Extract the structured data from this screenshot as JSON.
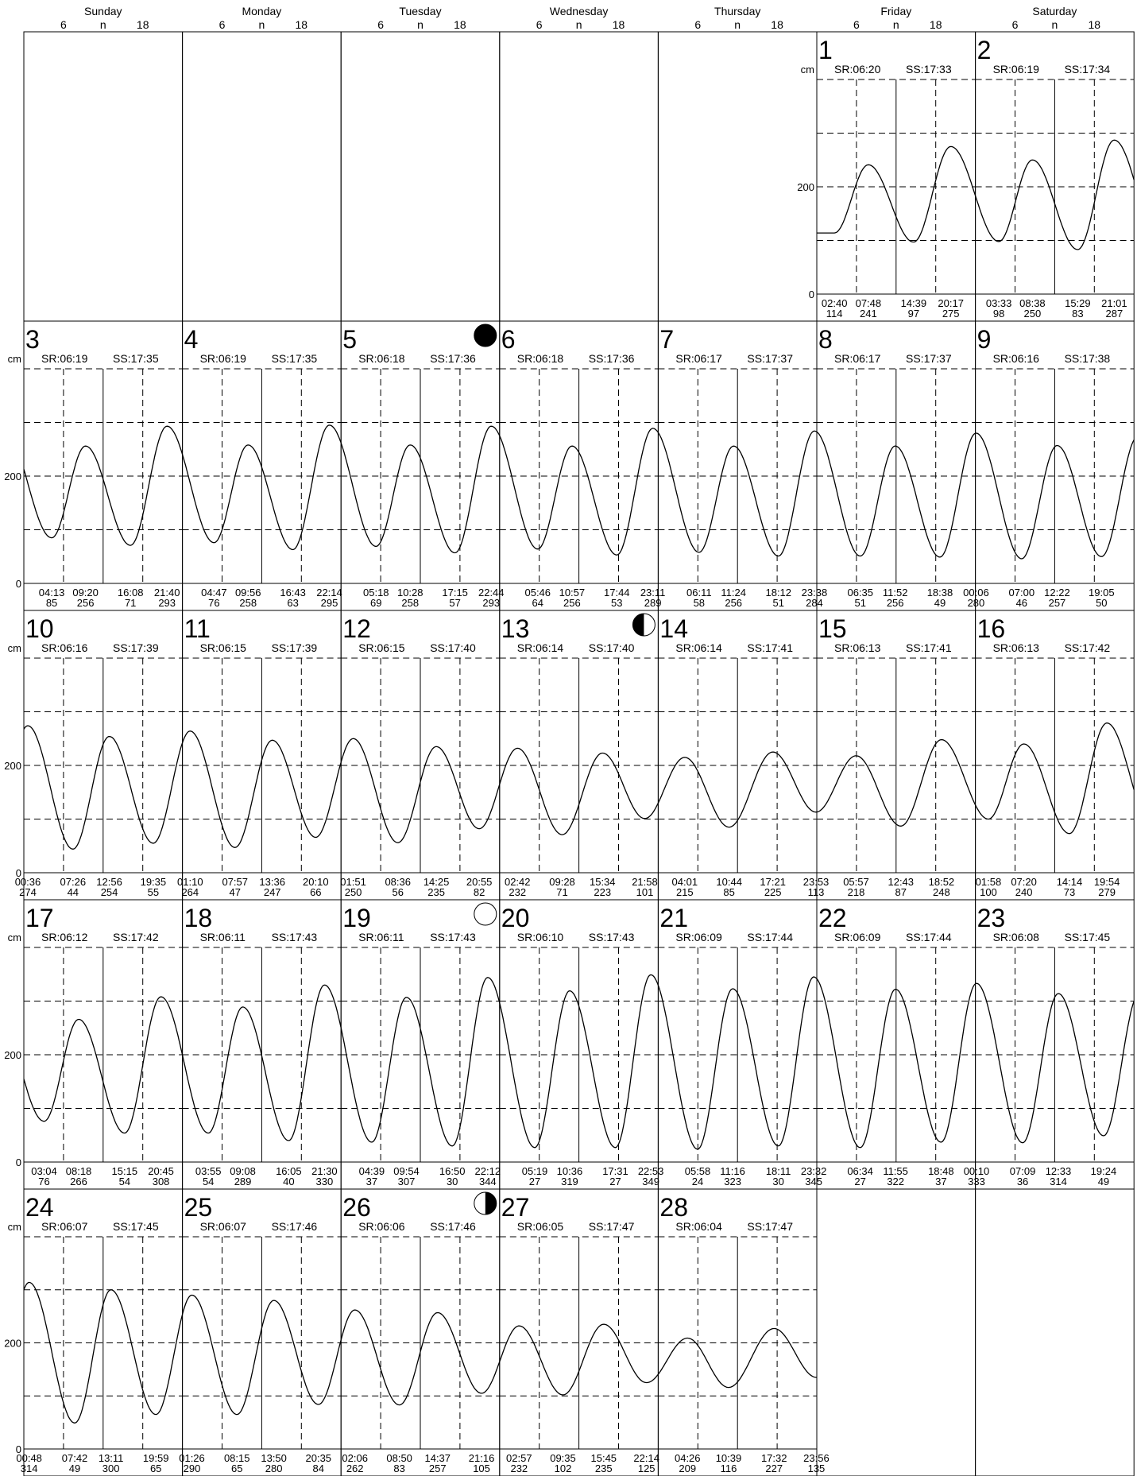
{
  "chart_data": {
    "type": "line",
    "unit": "cm",
    "y_ticks": [
      "200",
      "0"
    ],
    "grid": true,
    "weekdays": [
      "Sunday",
      "Monday",
      "Tuesday",
      "Wednesday",
      "Thursday",
      "Friday",
      "Saturday"
    ],
    "hour_ticks": [
      "6",
      "n",
      "18"
    ],
    "first_weekday_index": 5,
    "days": [
      {
        "day": "1",
        "sr": "SR:06:20",
        "ss": "SS:17:33",
        "moon": "",
        "tides": [
          [
            "02:40",
            "114"
          ],
          [
            "07:48",
            "241"
          ],
          [
            "14:39",
            "97"
          ],
          [
            "20:17",
            "275"
          ]
        ]
      },
      {
        "day": "2",
        "sr": "SR:06:19",
        "ss": "SS:17:34",
        "moon": "",
        "tides": [
          [
            "03:33",
            "98"
          ],
          [
            "08:38",
            "250"
          ],
          [
            "15:29",
            "83"
          ],
          [
            "21:01",
            "287"
          ]
        ]
      },
      {
        "day": "3",
        "sr": "SR:06:19",
        "ss": "SS:17:35",
        "moon": "",
        "tides": [
          [
            "04:13",
            "85"
          ],
          [
            "09:20",
            "256"
          ],
          [
            "16:08",
            "71"
          ],
          [
            "21:40",
            "293"
          ]
        ]
      },
      {
        "day": "4",
        "sr": "SR:06:19",
        "ss": "SS:17:35",
        "moon": "",
        "tides": [
          [
            "04:47",
            "76"
          ],
          [
            "09:56",
            "258"
          ],
          [
            "16:43",
            "63"
          ],
          [
            "22:14",
            "295"
          ]
        ]
      },
      {
        "day": "5",
        "sr": "SR:06:18",
        "ss": "SS:17:36",
        "moon": "new",
        "tides": [
          [
            "05:18",
            "69"
          ],
          [
            "10:28",
            "258"
          ],
          [
            "17:15",
            "57"
          ],
          [
            "22:44",
            "293"
          ]
        ]
      },
      {
        "day": "6",
        "sr": "SR:06:18",
        "ss": "SS:17:36",
        "moon": "",
        "tides": [
          [
            "05:46",
            "64"
          ],
          [
            "10:57",
            "256"
          ],
          [
            "17:44",
            "53"
          ],
          [
            "23:11",
            "289"
          ]
        ]
      },
      {
        "day": "7",
        "sr": "SR:06:17",
        "ss": "SS:17:37",
        "moon": "",
        "tides": [
          [
            "06:11",
            "58"
          ],
          [
            "11:24",
            "256"
          ],
          [
            "18:12",
            "51"
          ],
          [
            "23:38",
            "284"
          ]
        ]
      },
      {
        "day": "8",
        "sr": "SR:06:17",
        "ss": "SS:17:37",
        "moon": "",
        "tides": [
          [
            "06:35",
            "51"
          ],
          [
            "11:52",
            "256"
          ],
          [
            "18:38",
            "49"
          ]
        ]
      },
      {
        "day": "9",
        "sr": "SR:06:16",
        "ss": "SS:17:38",
        "moon": "",
        "tides": [
          [
            "00:06",
            "280"
          ],
          [
            "07:00",
            "46"
          ],
          [
            "12:22",
            "257"
          ],
          [
            "19:05",
            "50"
          ]
        ]
      },
      {
        "day": "10",
        "sr": "SR:06:16",
        "ss": "SS:17:39",
        "moon": "",
        "tides": [
          [
            "00:36",
            "274"
          ],
          [
            "07:26",
            "44"
          ],
          [
            "12:56",
            "254"
          ],
          [
            "19:35",
            "55"
          ]
        ]
      },
      {
        "day": "11",
        "sr": "SR:06:15",
        "ss": "SS:17:39",
        "moon": "",
        "tides": [
          [
            "01:10",
            "264"
          ],
          [
            "07:57",
            "47"
          ],
          [
            "13:36",
            "247"
          ],
          [
            "20:10",
            "66"
          ]
        ]
      },
      {
        "day": "12",
        "sr": "SR:06:15",
        "ss": "SS:17:40",
        "moon": "",
        "tides": [
          [
            "01:51",
            "250"
          ],
          [
            "08:36",
            "56"
          ],
          [
            "14:25",
            "235"
          ],
          [
            "20:55",
            "82"
          ]
        ]
      },
      {
        "day": "13",
        "sr": "SR:06:14",
        "ss": "SS:17:40",
        "moon": "first",
        "tides": [
          [
            "02:42",
            "232"
          ],
          [
            "09:28",
            "71"
          ],
          [
            "15:34",
            "223"
          ],
          [
            "21:58",
            "101"
          ]
        ]
      },
      {
        "day": "14",
        "sr": "SR:06:14",
        "ss": "SS:17:41",
        "moon": "",
        "tides": [
          [
            "04:01",
            "215"
          ],
          [
            "10:44",
            "85"
          ],
          [
            "17:21",
            "225"
          ],
          [
            "23:53",
            "113"
          ]
        ]
      },
      {
        "day": "15",
        "sr": "SR:06:13",
        "ss": "SS:17:41",
        "moon": "",
        "tides": [
          [
            "05:57",
            "218"
          ],
          [
            "12:43",
            "87"
          ],
          [
            "18:52",
            "248"
          ]
        ]
      },
      {
        "day": "16",
        "sr": "SR:06:13",
        "ss": "SS:17:42",
        "moon": "",
        "tides": [
          [
            "01:58",
            "100"
          ],
          [
            "07:20",
            "240"
          ],
          [
            "14:14",
            "73"
          ],
          [
            "19:54",
            "279"
          ]
        ]
      },
      {
        "day": "17",
        "sr": "SR:06:12",
        "ss": "SS:17:42",
        "moon": "",
        "tides": [
          [
            "03:04",
            "76"
          ],
          [
            "08:18",
            "266"
          ],
          [
            "15:15",
            "54"
          ],
          [
            "20:45",
            "308"
          ]
        ]
      },
      {
        "day": "18",
        "sr": "SR:06:11",
        "ss": "SS:17:43",
        "moon": "",
        "tides": [
          [
            "03:55",
            "54"
          ],
          [
            "09:08",
            "289"
          ],
          [
            "16:05",
            "40"
          ],
          [
            "21:30",
            "330"
          ]
        ]
      },
      {
        "day": "19",
        "sr": "SR:06:11",
        "ss": "SS:17:43",
        "moon": "full",
        "tides": [
          [
            "04:39",
            "37"
          ],
          [
            "09:54",
            "307"
          ],
          [
            "16:50",
            "30"
          ],
          [
            "22:12",
            "344"
          ]
        ]
      },
      {
        "day": "20",
        "sr": "SR:06:10",
        "ss": "SS:17:43",
        "moon": "",
        "tides": [
          [
            "05:19",
            "27"
          ],
          [
            "10:36",
            "319"
          ],
          [
            "17:31",
            "27"
          ],
          [
            "22:53",
            "349"
          ]
        ]
      },
      {
        "day": "21",
        "sr": "SR:06:09",
        "ss": "SS:17:44",
        "moon": "",
        "tides": [
          [
            "05:58",
            "24"
          ],
          [
            "11:16",
            "323"
          ],
          [
            "18:11",
            "30"
          ],
          [
            "23:32",
            "345"
          ]
        ]
      },
      {
        "day": "22",
        "sr": "SR:06:09",
        "ss": "SS:17:44",
        "moon": "",
        "tides": [
          [
            "06:34",
            "27"
          ],
          [
            "11:55",
            "322"
          ],
          [
            "18:48",
            "37"
          ]
        ]
      },
      {
        "day": "23",
        "sr": "SR:06:08",
        "ss": "SS:17:45",
        "moon": "",
        "tides": [
          [
            "00:10",
            "333"
          ],
          [
            "07:09",
            "36"
          ],
          [
            "12:33",
            "314"
          ],
          [
            "19:24",
            "49"
          ]
        ]
      },
      {
        "day": "24",
        "sr": "SR:06:07",
        "ss": "SS:17:45",
        "moon": "",
        "tides": [
          [
            "00:48",
            "314"
          ],
          [
            "07:42",
            "49"
          ],
          [
            "13:11",
            "300"
          ],
          [
            "19:59",
            "65"
          ]
        ]
      },
      {
        "day": "25",
        "sr": "SR:06:07",
        "ss": "SS:17:46",
        "moon": "",
        "tides": [
          [
            "01:26",
            "290"
          ],
          [
            "08:15",
            "65"
          ],
          [
            "13:50",
            "280"
          ],
          [
            "20:35",
            "84"
          ]
        ]
      },
      {
        "day": "26",
        "sr": "SR:06:06",
        "ss": "SS:17:46",
        "moon": "last",
        "tides": [
          [
            "02:06",
            "262"
          ],
          [
            "08:50",
            "83"
          ],
          [
            "14:37",
            "257"
          ],
          [
            "21:16",
            "105"
          ]
        ]
      },
      {
        "day": "27",
        "sr": "SR:06:05",
        "ss": "SS:17:47",
        "moon": "",
        "tides": [
          [
            "02:57",
            "232"
          ],
          [
            "09:35",
            "102"
          ],
          [
            "15:45",
            "235"
          ],
          [
            "22:14",
            "125"
          ]
        ]
      },
      {
        "day": "28",
        "sr": "SR:06:04",
        "ss": "SS:17:47",
        "moon": "",
        "tides": [
          [
            "04:26",
            "209"
          ],
          [
            "10:39",
            "116"
          ],
          [
            "17:32",
            "227"
          ],
          [
            "23:56",
            "135"
          ]
        ]
      }
    ]
  }
}
